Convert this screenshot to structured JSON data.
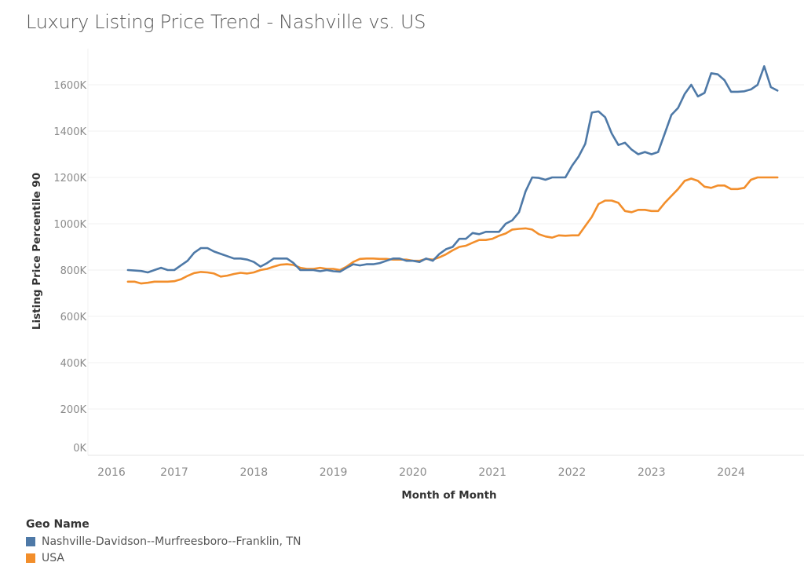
{
  "title": "Luxury Listing Price Trend - Nashville vs. US",
  "legend": {
    "title": "Geo Name",
    "items": [
      {
        "label": "Nashville-Davidson--Murfreesboro--Franklin, TN",
        "color": "#4e79a7"
      },
      {
        "label": "USA",
        "color": "#f28e2b"
      }
    ]
  },
  "chart_data": {
    "type": "line",
    "title": "Luxury Listing Price Trend - Nashville vs. US",
    "xlabel": "Month of Month",
    "ylabel": "Listing Price Percentile 90",
    "x_start": "2016-06",
    "x_step": "month",
    "x_ticks": [
      "2016",
      "2017",
      "2018",
      "2019",
      "2020",
      "2021",
      "2022",
      "2023",
      "2024"
    ],
    "y_ticks": [
      "0K",
      "200K",
      "400K",
      "600K",
      "800K",
      "1000K",
      "1200K",
      "1400K",
      "1600K"
    ],
    "ylim": [
      0,
      1700
    ],
    "y_unit": "K",
    "grid": true,
    "legend_position": "bottom-left",
    "series": [
      {
        "name": "Nashville-Davidson--Murfreesboro--Franklin, TN",
        "color": "#4e79a7",
        "values": [
          800,
          798,
          796,
          790,
          800,
          810,
          800,
          800,
          820,
          840,
          875,
          895,
          895,
          880,
          870,
          860,
          850,
          850,
          845,
          835,
          815,
          830,
          850,
          850,
          850,
          830,
          800,
          800,
          800,
          795,
          800,
          795,
          793,
          810,
          825,
          820,
          825,
          825,
          830,
          840,
          850,
          850,
          840,
          840,
          835,
          850,
          840,
          870,
          890,
          900,
          935,
          935,
          960,
          955,
          965,
          965,
          965,
          1000,
          1015,
          1050,
          1140,
          1200,
          1198,
          1190,
          1200,
          1200,
          1200,
          1250,
          1290,
          1345,
          1480,
          1485,
          1460,
          1390,
          1340,
          1350,
          1320,
          1300,
          1310,
          1300,
          1310,
          1390,
          1470,
          1500,
          1560,
          1600,
          1550,
          1565,
          1650,
          1645,
          1620,
          1570,
          1570,
          1572,
          1580,
          1600,
          1680,
          1590,
          1575
        ]
      },
      {
        "name": "USA",
        "color": "#f28e2b",
        "values": [
          750,
          750,
          742,
          745,
          750,
          750,
          750,
          752,
          760,
          775,
          787,
          792,
          790,
          785,
          772,
          776,
          783,
          788,
          785,
          790,
          800,
          805,
          815,
          823,
          825,
          822,
          810,
          805,
          805,
          810,
          805,
          805,
          800,
          815,
          835,
          848,
          850,
          850,
          848,
          848,
          845,
          845,
          845,
          840,
          840,
          848,
          845,
          855,
          868,
          885,
          900,
          905,
          918,
          930,
          930,
          935,
          948,
          958,
          975,
          978,
          980,
          975,
          955,
          945,
          940,
          950,
          948,
          950,
          950,
          990,
          1030,
          1085,
          1100,
          1100,
          1090,
          1055,
          1050,
          1060,
          1060,
          1055,
          1055,
          1090,
          1120,
          1150,
          1185,
          1195,
          1185,
          1160,
          1155,
          1165,
          1165,
          1150,
          1150,
          1155,
          1190,
          1200,
          1200,
          1200,
          1200
        ]
      }
    ]
  }
}
